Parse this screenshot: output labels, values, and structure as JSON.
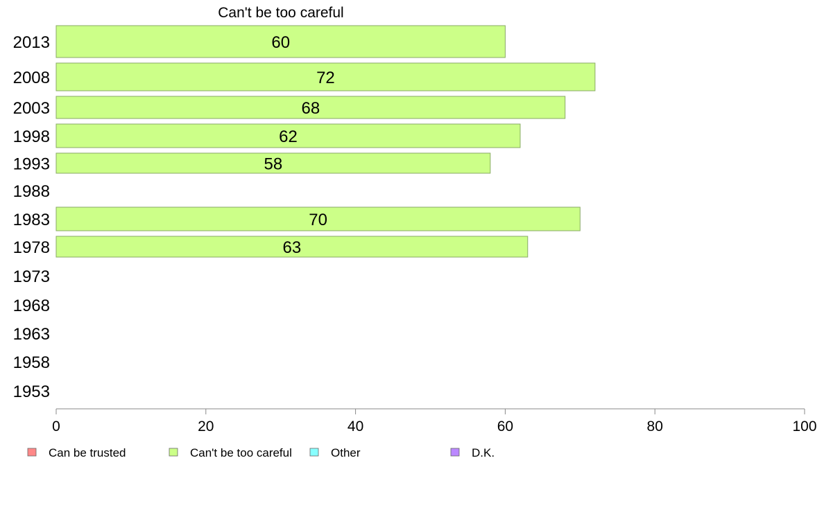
{
  "chart_data": {
    "type": "bar",
    "orientation": "horizontal",
    "title": "Can't be too careful",
    "categories": [
      "2013",
      "2008",
      "2003",
      "1998",
      "1993",
      "1988",
      "1983",
      "1978",
      "1973",
      "1968",
      "1963",
      "1958",
      "1953"
    ],
    "series": [
      {
        "name": "Can't be too careful",
        "values": [
          60,
          72,
          68,
          62,
          58,
          null,
          70,
          63,
          null,
          null,
          null,
          null,
          null
        ]
      }
    ],
    "data_labels": [
      "60",
      "72",
      "68",
      "62",
      "58",
      "",
      "70",
      "63",
      "",
      "",
      "",
      "",
      ""
    ],
    "xlim": [
      0,
      100
    ],
    "xticks": [
      "0",
      "20",
      "40",
      "60",
      "80",
      "100"
    ],
    "grid": false,
    "legend_position": "bottom",
    "legend": [
      {
        "label": "Can be trusted",
        "color": "#ff8888"
      },
      {
        "label": "Can't be too careful",
        "color": "#ccff88"
      },
      {
        "label": "Other",
        "color": "#88ffff"
      },
      {
        "label": "D.K.",
        "color": "#bb88ff"
      }
    ],
    "bar_color": "#ccff88",
    "bar_stroke": "#88aa66"
  }
}
